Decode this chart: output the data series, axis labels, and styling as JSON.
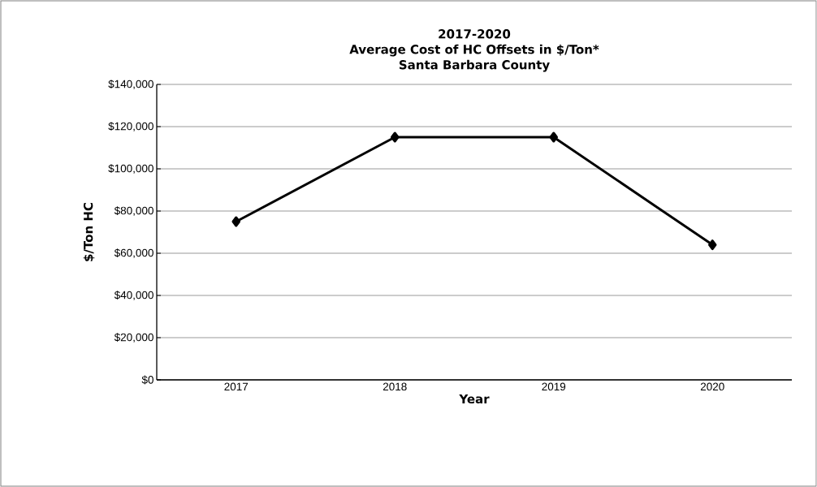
{
  "chart_data": {
    "type": "line",
    "title": "2017-2020\nAverage Cost of HC Offsets in $/Ton*\nSanta Barbara County",
    "xlabel": "Year",
    "ylabel": "$/Ton HC",
    "categories": [
      "2017",
      "2018",
      "2019",
      "2020"
    ],
    "series": [
      {
        "color": "#000000",
        "values": [
          75000,
          115000,
          115000,
          64000
        ]
      }
    ],
    "ylim": [
      0,
      140000
    ],
    "yticks": [
      {
        "value": 0,
        "label": "$0"
      },
      {
        "value": 20000,
        "label": "$20,000"
      },
      {
        "value": 40000,
        "label": "$40,000"
      },
      {
        "value": 60000,
        "label": "$60,000"
      },
      {
        "value": 80000,
        "label": "$80,000"
      },
      {
        "value": 100000,
        "label": "$100,000"
      },
      {
        "value": 120000,
        "label": "$120,000"
      },
      {
        "value": 140000,
        "label": "$140,000"
      }
    ],
    "grid": "y",
    "marker": "diamond",
    "line_style": "solid"
  }
}
